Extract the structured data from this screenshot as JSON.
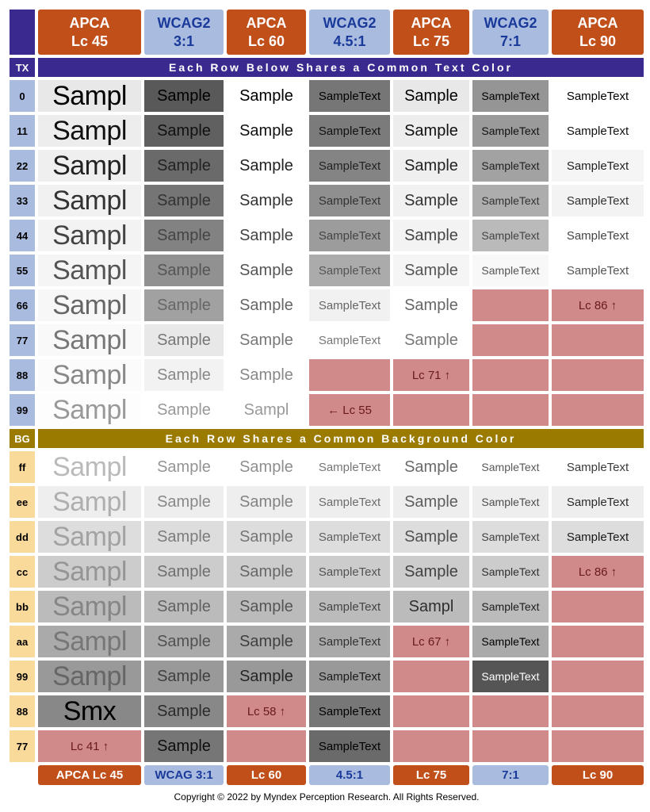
{
  "header": {
    "corner": "TX",
    "cols": [
      {
        "l1": "APCA",
        "l2": "Lc 45",
        "cls": "apca-h"
      },
      {
        "l1": "WCAG2",
        "l2": "3:1",
        "cls": "wcag-h"
      },
      {
        "l1": "APCA",
        "l2": "Lc 60",
        "cls": "apca-h"
      },
      {
        "l1": "WCAG2",
        "l2": "4.5:1",
        "cls": "wcag-h"
      },
      {
        "l1": "APCA",
        "l2": "Lc 75",
        "cls": "apca-h"
      },
      {
        "l1": "WCAG2",
        "l2": "7:1",
        "cls": "wcag-h"
      },
      {
        "l1": "APCA",
        "l2": "Lc 90",
        "cls": "apca-h"
      }
    ]
  },
  "banner_tx": {
    "label": "TX",
    "text": "Each Row Below Shares a Common Text Color"
  },
  "banner_bg": {
    "label": "BG",
    "text": "Each Row Shares a Common Background Color"
  },
  "col_fs": [
    "fs-xl",
    "fs-l",
    "fs-l",
    "fs-m",
    "fs-l",
    "fs-s",
    "fs-m"
  ],
  "tx_rows": [
    {
      "label": "0",
      "fg": "#000000",
      "cells": [
        {
          "bg": "#e8e8e8",
          "t": "Sampl"
        },
        {
          "bg": "#595959",
          "t": "Sample"
        },
        {
          "bg": "#ffffff",
          "t": "Sample"
        },
        {
          "bg": "#767676",
          "t": "SampleText"
        },
        {
          "bg": "#e8e8e8",
          "t": "Sample"
        },
        {
          "bg": "#959595",
          "t": "SampleText"
        },
        {
          "bg": "#ffffff",
          "t": "SampleText"
        }
      ]
    },
    {
      "label": "11",
      "fg": "#111111",
      "cells": [
        {
          "bg": "#ededed",
          "t": "Sampl"
        },
        {
          "bg": "#606060",
          "t": "Sample"
        },
        {
          "bg": "#ffffff",
          "t": "Sample"
        },
        {
          "bg": "#7b7b7b",
          "t": "SampleText"
        },
        {
          "bg": "#ededed",
          "t": "Sample"
        },
        {
          "bg": "#9a9a9a",
          "t": "SampleText"
        },
        {
          "bg": "#ffffff",
          "t": "SampleText"
        }
      ]
    },
    {
      "label": "22",
      "fg": "#222222",
      "cells": [
        {
          "bg": "#efefef",
          "t": "Sampl"
        },
        {
          "bg": "#6a6a6a",
          "t": "Sample"
        },
        {
          "bg": "#ffffff",
          "t": "Sample"
        },
        {
          "bg": "#848484",
          "t": "SampleText"
        },
        {
          "bg": "#efefef",
          "t": "Sample"
        },
        {
          "bg": "#a2a2a2",
          "t": "SampleText"
        },
        {
          "bg": "#f5f5f5",
          "t": "SampleText"
        }
      ]
    },
    {
      "label": "33",
      "fg": "#333333",
      "cells": [
        {
          "bg": "#f1f1f1",
          "t": "Sampl"
        },
        {
          "bg": "#757575",
          "t": "Sample"
        },
        {
          "bg": "#ffffff",
          "t": "Sample"
        },
        {
          "bg": "#8f8f8f",
          "t": "SampleText"
        },
        {
          "bg": "#f1f1f1",
          "t": "Sample"
        },
        {
          "bg": "#adadad",
          "t": "SampleText"
        },
        {
          "bg": "#f3f3f3",
          "t": "SampleText"
        }
      ]
    },
    {
      "label": "44",
      "fg": "#444444",
      "cells": [
        {
          "bg": "#f3f3f3",
          "t": "Sampl"
        },
        {
          "bg": "#828282",
          "t": "Sample"
        },
        {
          "bg": "#ffffff",
          "t": "Sample"
        },
        {
          "bg": "#9c9c9c",
          "t": "SampleText"
        },
        {
          "bg": "#f3f3f3",
          "t": "Sample"
        },
        {
          "bg": "#bababa",
          "t": "SampleText"
        },
        {
          "bg": "#ffffff",
          "t": "SampleText"
        }
      ]
    },
    {
      "label": "55",
      "fg": "#555555",
      "cells": [
        {
          "bg": "#f5f5f5",
          "t": "Sampl"
        },
        {
          "bg": "#919191",
          "t": "Sample"
        },
        {
          "bg": "#ffffff",
          "t": "Sample"
        },
        {
          "bg": "#ababab",
          "t": "SampleText"
        },
        {
          "bg": "#f5f5f5",
          "t": "Sample"
        },
        {
          "bg": "#f8f8f8",
          "t": "SampleText"
        },
        {
          "bg": "#ffffff",
          "t": "SampleText"
        }
      ]
    },
    {
      "label": "66",
      "fg": "#666666",
      "cells": [
        {
          "bg": "#f7f7f7",
          "t": "Sampl"
        },
        {
          "bg": "#a1a1a1",
          "t": "Sample"
        },
        {
          "bg": "#ffffff",
          "t": "Sample"
        },
        {
          "bg": "#f1f1f1",
          "t": "SampleText"
        },
        {
          "bg": "#ffffff",
          "t": "Sample"
        },
        {
          "fail": ""
        },
        {
          "fail": "Lc 86 ↑"
        }
      ]
    },
    {
      "label": "77",
      "fg": "#777777",
      "cells": [
        {
          "bg": "#f9f9f9",
          "t": "Sampl"
        },
        {
          "bg": "#e8e8e8",
          "t": "Sample"
        },
        {
          "bg": "#ffffff",
          "t": "Sample"
        },
        {
          "bg": "#ffffff",
          "t": "SampleText"
        },
        {
          "bg": "#ffffff",
          "t": "Sample"
        },
        {
          "fail": ""
        },
        {
          "fail": ""
        }
      ]
    },
    {
      "label": "88",
      "fg": "#888888",
      "cells": [
        {
          "bg": "#fbfbfb",
          "t": "Sampl"
        },
        {
          "bg": "#f2f2f2",
          "t": "Sample"
        },
        {
          "bg": "#ffffff",
          "t": "Sample"
        },
        {
          "fail": ""
        },
        {
          "fail": "Lc 71 ↑"
        },
        {
          "fail": ""
        },
        {
          "fail": ""
        }
      ]
    },
    {
      "label": "99",
      "fg": "#999999",
      "cells": [
        {
          "bg": "#fdfdfd",
          "t": "Sampl"
        },
        {
          "bg": "#ffffff",
          "t": "Sample"
        },
        {
          "bg": "#ffffff",
          "t": "Sampl"
        },
        {
          "fail": "← Lc 55"
        },
        {
          "fail": ""
        },
        {
          "fail": ""
        },
        {
          "fail": ""
        }
      ]
    }
  ],
  "bg_rows": [
    {
      "label": "ff",
      "bg": "#ffffff",
      "cells": [
        {
          "fg": "#bababa",
          "t": "Sampl"
        },
        {
          "fg": "#949494",
          "t": "Sample"
        },
        {
          "fg": "#8f8f8f",
          "t": "Sample"
        },
        {
          "fg": "#767676",
          "t": "SampleText"
        },
        {
          "fg": "#6a6a6a",
          "t": "Sample"
        },
        {
          "fg": "#595959",
          "t": "SampleText"
        },
        {
          "fg": "#3a3a3a",
          "t": "SampleText"
        }
      ]
    },
    {
      "label": "ee",
      "bg": "#eeeeee",
      "cells": [
        {
          "fg": "#afafaf",
          "t": "Sampl"
        },
        {
          "fg": "#888888",
          "t": "Sample"
        },
        {
          "fg": "#838383",
          "t": "Sample"
        },
        {
          "fg": "#6c6c6c",
          "t": "SampleText"
        },
        {
          "fg": "#5e5e5e",
          "t": "Sample"
        },
        {
          "fg": "#4e4e4e",
          "t": "SampleText"
        },
        {
          "fg": "#2c2c2c",
          "t": "SampleText"
        }
      ]
    },
    {
      "label": "dd",
      "bg": "#dddddd",
      "cells": [
        {
          "fg": "#a2a2a2",
          "t": "Sampl"
        },
        {
          "fg": "#7c7c7c",
          "t": "Sample"
        },
        {
          "fg": "#757575",
          "t": "Sample"
        },
        {
          "fg": "#606060",
          "t": "SampleText"
        },
        {
          "fg": "#515151",
          "t": "Sample"
        },
        {
          "fg": "#404040",
          "t": "SampleText"
        },
        {
          "fg": "#181818",
          "t": "SampleText"
        }
      ]
    },
    {
      "label": "cc",
      "bg": "#cccccc",
      "cells": [
        {
          "fg": "#959595",
          "t": "Sampl"
        },
        {
          "fg": "#6f6f6f",
          "t": "Sample"
        },
        {
          "fg": "#676767",
          "t": "Sample"
        },
        {
          "fg": "#535353",
          "t": "SampleText"
        },
        {
          "fg": "#424242",
          "t": "Sample"
        },
        {
          "fg": "#303030",
          "t": "SampleText"
        },
        {
          "fail": "Lc 86 ↑"
        }
      ]
    },
    {
      "label": "bb",
      "bg": "#bbbbbb",
      "cells": [
        {
          "fg": "#868686",
          "t": "Sampl"
        },
        {
          "fg": "#616161",
          "t": "Sample"
        },
        {
          "fg": "#555555",
          "t": "Sample"
        },
        {
          "fg": "#444444",
          "t": "SampleText"
        },
        {
          "fg": "#2e2e2e",
          "t": "Sampl"
        },
        {
          "fg": "#1c1c1c",
          "t": "SampleText"
        },
        {
          "fail": ""
        }
      ]
    },
    {
      "label": "aa",
      "bg": "#aaaaaa",
      "cells": [
        {
          "fg": "#777777",
          "t": "Sampl"
        },
        {
          "fg": "#515151",
          "t": "Sample"
        },
        {
          "fg": "#404040",
          "t": "Sample"
        },
        {
          "fg": "#323232",
          "t": "SampleText"
        },
        {
          "fail": "Lc 67 ↑"
        },
        {
          "fg": "#000000",
          "t": "SampleText"
        },
        {
          "fail": ""
        }
      ]
    },
    {
      "label": "99",
      "bg": "#999999",
      "cells": [
        {
          "fg": "#666666",
          "t": "Sampl"
        },
        {
          "fg": "#404040",
          "t": "Sample"
        },
        {
          "fg": "#262626",
          "t": "Sample"
        },
        {
          "fg": "#1a1a1a",
          "t": "SampleText"
        },
        {
          "fail": ""
        },
        {
          "bg": "#555555",
          "fg": "#ffffff",
          "t": "SampleText"
        },
        {
          "fail": ""
        }
      ]
    },
    {
      "label": "88",
      "bg": "#888888",
      "cells": [
        {
          "fg": "#000000",
          "t": "Smx",
          "fsOverride": "fs-xl"
        },
        {
          "fg": "#2b2b2b",
          "t": "Sample"
        },
        {
          "fail": "Lc 58 ↑"
        },
        {
          "bg": "#777777",
          "fg": "#000000",
          "t": "SampleText"
        },
        {
          "fail": ""
        },
        {
          "fail": ""
        },
        {
          "fail": ""
        }
      ]
    },
    {
      "label": "77",
      "bg": "#777777",
      "cells": [
        {
          "fail": "Lc 41 ↑"
        },
        {
          "bg": "#767676",
          "fg": "#0e0e0e",
          "t": "Sample"
        },
        {
          "fail": ""
        },
        {
          "bg": "#6a6a6a",
          "fg": "#000000",
          "t": "SampleText"
        },
        {
          "fail": ""
        },
        {
          "fail": ""
        },
        {
          "fail": ""
        }
      ]
    }
  ],
  "footer": {
    "cols": [
      {
        "t": "APCA Lc 45",
        "cls": "foot-a"
      },
      {
        "t": "WCAG 3:1",
        "cls": "foot-w"
      },
      {
        "t": "Lc 60",
        "cls": "foot-a"
      },
      {
        "t": "4.5:1",
        "cls": "foot-w"
      },
      {
        "t": "Lc 75",
        "cls": "foot-a"
      },
      {
        "t": "7:1",
        "cls": "foot-w"
      },
      {
        "t": "Lc 90",
        "cls": "foot-a"
      }
    ],
    "copyright": "Copyright © 2022 by Myndex Perception Research. All Rights Reserved."
  }
}
